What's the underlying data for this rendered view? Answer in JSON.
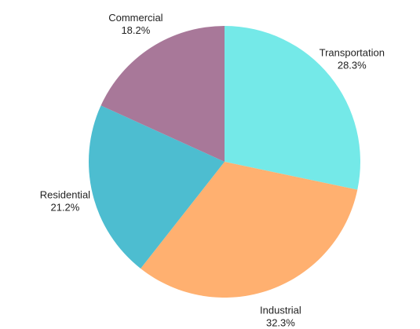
{
  "chart_data": {
    "type": "pie",
    "title": "",
    "slices": [
      {
        "label": "Transportation",
        "value": 28.3,
        "value_label": "28.3%",
        "color": "#74E9E8"
      },
      {
        "label": "Industrial",
        "value": 32.3,
        "value_label": "32.3%",
        "color": "#FFB070"
      },
      {
        "label": "Residential",
        "value": 21.2,
        "value_label": "21.2%",
        "color": "#4DBDD0"
      },
      {
        "label": "Commercial",
        "value": 18.2,
        "value_label": "18.2%",
        "color": "#A87899"
      }
    ],
    "start_angle": "12 o'clock",
    "direction": "clockwise",
    "legend": "none"
  }
}
